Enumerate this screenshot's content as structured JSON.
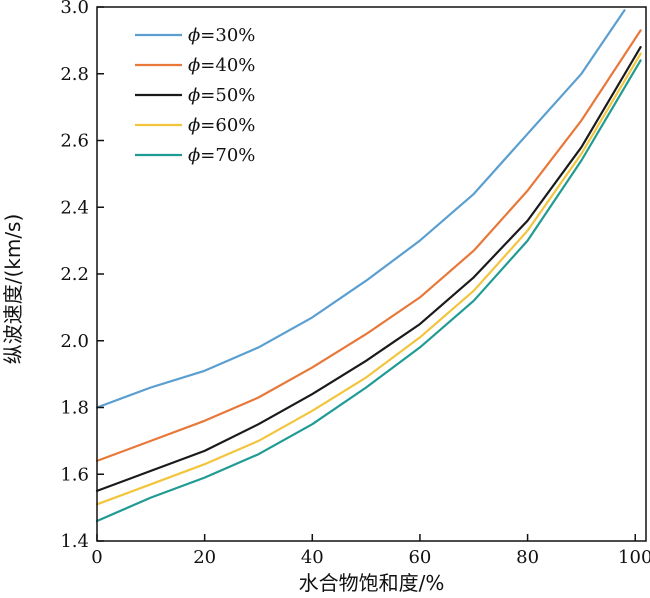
{
  "chart_data": {
    "type": "line",
    "xlabel": "水合物饱和度/%",
    "ylabel": "纵波速度/(km/s)",
    "xlim": [
      0,
      102
    ],
    "ylim": [
      1.4,
      3.0
    ],
    "xticks": [
      "0",
      "20",
      "40",
      "60",
      "80",
      "100"
    ],
    "yticks": [
      "1.4",
      "1.6",
      "1.8",
      "2.0",
      "2.2",
      "2.4",
      "2.6",
      "2.8",
      "3.0"
    ],
    "legend_position": "top-left",
    "series": [
      {
        "name": "ϕ=30%",
        "symbol": "ϕ",
        "label_rest": "=30%",
        "color": "#5a9fd0",
        "points": [
          [
            0,
            1.8
          ],
          [
            10,
            1.86
          ],
          [
            20,
            1.91
          ],
          [
            30,
            1.98
          ],
          [
            40,
            2.07
          ],
          [
            50,
            2.18
          ],
          [
            60,
            2.3
          ],
          [
            70,
            2.44
          ],
          [
            80,
            2.62
          ],
          [
            90,
            2.8
          ],
          [
            98,
            2.99
          ]
        ]
      },
      {
        "name": "ϕ=40%",
        "symbol": "ϕ",
        "label_rest": "=40%",
        "color": "#e8783a",
        "points": [
          [
            0,
            1.64
          ],
          [
            10,
            1.7
          ],
          [
            20,
            1.76
          ],
          [
            30,
            1.83
          ],
          [
            40,
            1.92
          ],
          [
            50,
            2.02
          ],
          [
            60,
            2.13
          ],
          [
            70,
            2.27
          ],
          [
            80,
            2.45
          ],
          [
            90,
            2.66
          ],
          [
            101,
            2.93
          ]
        ]
      },
      {
        "name": "ϕ=50%",
        "symbol": "ϕ",
        "label_rest": "=50%",
        "color": "#1a1a1a",
        "points": [
          [
            0,
            1.55
          ],
          [
            10,
            1.61
          ],
          [
            20,
            1.67
          ],
          [
            30,
            1.75
          ],
          [
            40,
            1.84
          ],
          [
            50,
            1.94
          ],
          [
            60,
            2.05
          ],
          [
            70,
            2.19
          ],
          [
            80,
            2.36
          ],
          [
            90,
            2.58
          ],
          [
            101,
            2.88
          ]
        ]
      },
      {
        "name": "ϕ=60%",
        "symbol": "ϕ",
        "label_rest": "=60%",
        "color": "#f2c53d",
        "points": [
          [
            0,
            1.51
          ],
          [
            10,
            1.57
          ],
          [
            20,
            1.63
          ],
          [
            30,
            1.7
          ],
          [
            40,
            1.79
          ],
          [
            50,
            1.89
          ],
          [
            60,
            2.01
          ],
          [
            70,
            2.15
          ],
          [
            80,
            2.33
          ],
          [
            90,
            2.56
          ],
          [
            101,
            2.86
          ]
        ]
      },
      {
        "name": "ϕ=70%",
        "symbol": "ϕ",
        "label_rest": "=70%",
        "color": "#1f9b94",
        "points": [
          [
            0,
            1.46
          ],
          [
            10,
            1.53
          ],
          [
            20,
            1.59
          ],
          [
            30,
            1.66
          ],
          [
            40,
            1.75
          ],
          [
            50,
            1.86
          ],
          [
            60,
            1.98
          ],
          [
            70,
            2.12
          ],
          [
            80,
            2.3
          ],
          [
            90,
            2.54
          ],
          [
            101,
            2.84
          ]
        ]
      }
    ]
  }
}
